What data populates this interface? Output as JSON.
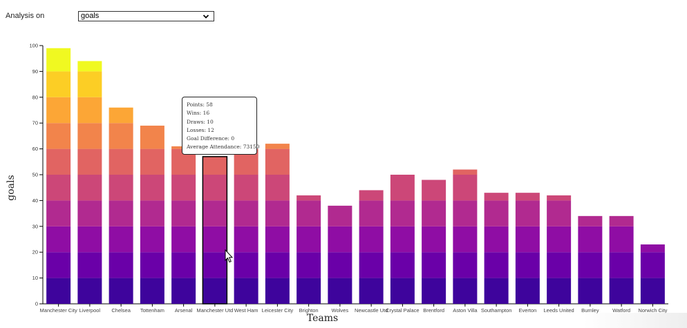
{
  "controls": {
    "label": "Analysis on",
    "selected": "goals"
  },
  "colors": {
    "segments": [
      "#3e049c",
      "#6a00a8",
      "#8f0da4",
      "#b12a90",
      "#cc4778",
      "#e16462",
      "#f2844b",
      "#fca636",
      "#fcce25",
      "#f0f921"
    ],
    "highlight_stroke": "#000000"
  },
  "tooltip": {
    "lines": [
      "Points: 58",
      "Wins: 16",
      "Draws: 10",
      "Losses: 12",
      "Goal Difference: 0",
      "Average Attendance: 73150"
    ]
  },
  "chart_data": {
    "type": "bar",
    "title": "",
    "xlabel": "Teams",
    "ylabel": "goals",
    "ylim": [
      0,
      100
    ],
    "yticks": [
      0,
      10,
      20,
      30,
      40,
      50,
      60,
      70,
      80,
      90,
      100
    ],
    "segment_size": 10,
    "grid": false,
    "legend": "none",
    "categories": [
      "Manchester City",
      "Liverpool",
      "Chelsea",
      "Tottenham",
      "Arsenal",
      "Manchester Utd",
      "West Ham",
      "Leicester City",
      "Brighton",
      "Wolves",
      "Newcastle Utd",
      "Crystal Palace",
      "Brentford",
      "Aston Villa",
      "Southampton",
      "Everton",
      "Leeds United",
      "Burnley",
      "Watford",
      "Norwich City"
    ],
    "values": [
      99,
      94,
      76,
      69,
      61,
      57,
      60,
      62,
      42,
      38,
      44,
      50,
      48,
      52,
      43,
      43,
      42,
      34,
      34,
      23
    ],
    "highlighted": "Manchester Utd"
  }
}
